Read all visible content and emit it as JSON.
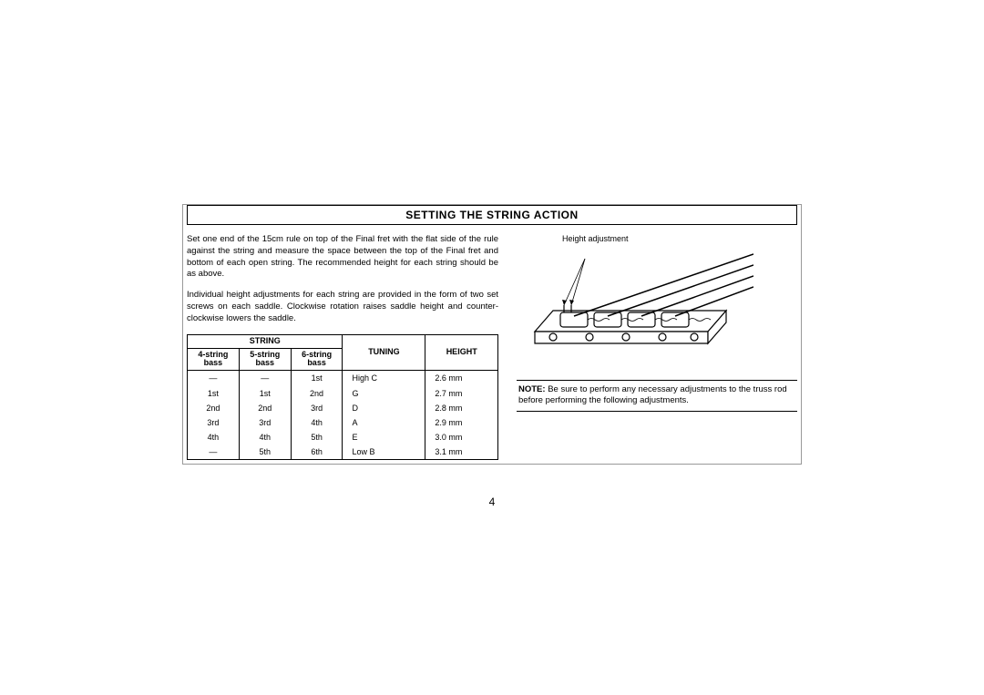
{
  "title": "SETTING THE STRING ACTION",
  "paragraphs": {
    "p1": "Set one end of the 15cm rule on top of the Final fret with the flat side of the rule against the string and measure the space between the top of the Final fret and bottom of each open string. The recommended height for each string should be as above.",
    "p2": "Individual height adjustments for each string are provided in the form of two set screws on each saddle. Clockwise rotation raises saddle height and counter-clockwise lowers the saddle."
  },
  "table": {
    "group_header": "STRING",
    "columns": [
      "4-string bass",
      "5-string bass",
      "6-string bass",
      "TUNING",
      "HEIGHT"
    ],
    "rows": [
      [
        "—",
        "—",
        "1st",
        "High C",
        "2.6 mm"
      ],
      [
        "1st",
        "1st",
        "2nd",
        "G",
        "2.7 mm"
      ],
      [
        "2nd",
        "2nd",
        "3rd",
        "D",
        "2.8 mm"
      ],
      [
        "3rd",
        "3rd",
        "4th",
        "A",
        "2.9 mm"
      ],
      [
        "4th",
        "4th",
        "5th",
        "E",
        "3.0 mm"
      ],
      [
        "—",
        "5th",
        "6th",
        "Low B",
        "3.1 mm"
      ]
    ]
  },
  "diagram": {
    "label": "Height adjustment",
    "stroke": "#000000",
    "fill": "#ffffff"
  },
  "note": {
    "label": "NOTE:",
    "text": "Be sure to perform any necessary adjustments to the truss rod before performing the following adjustments."
  },
  "page_number": "4"
}
